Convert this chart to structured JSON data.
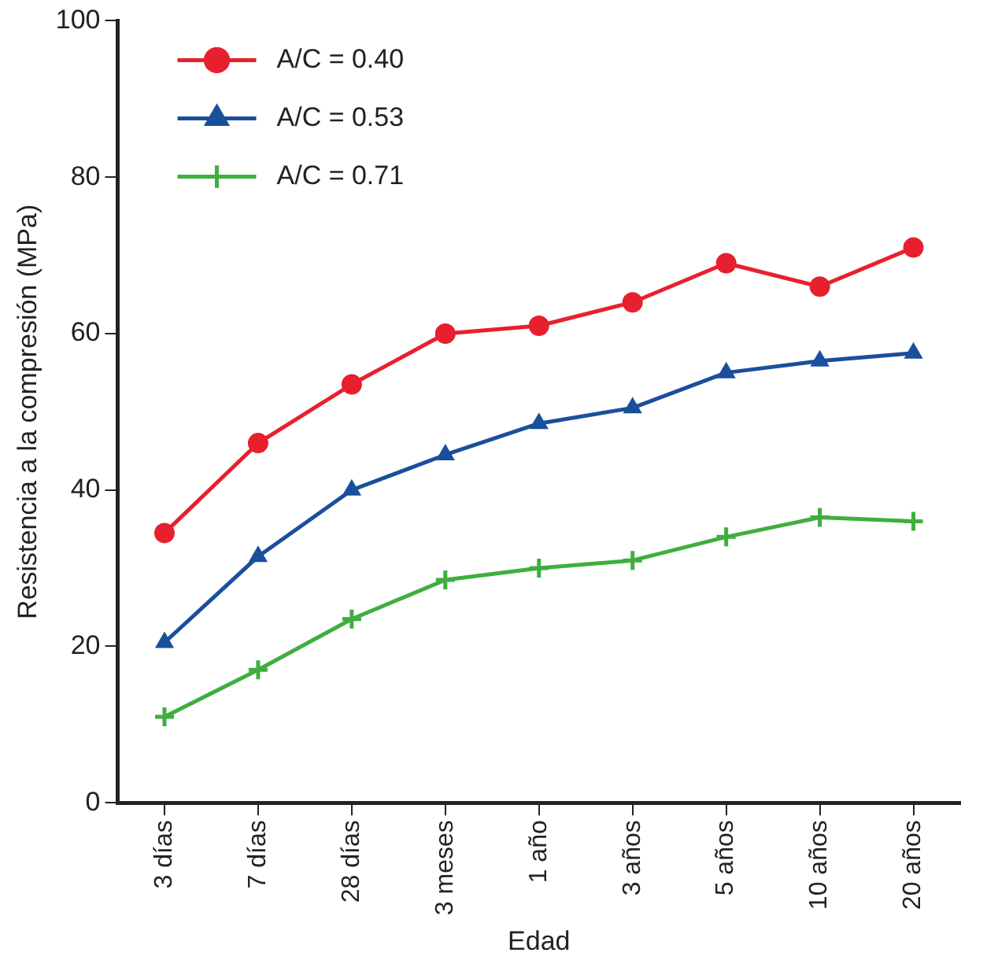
{
  "chart_data": {
    "type": "line",
    "xlabel": "Edad",
    "ylabel": "Resistencia a la compresión (MPa)",
    "categories": [
      "3 días",
      "7 días",
      "28 días",
      "3 meses",
      "1 año",
      "3 años",
      "5 años",
      "10 años",
      "20 años"
    ],
    "ylim": [
      0,
      100
    ],
    "yticks": [
      0,
      20,
      40,
      60,
      80,
      100
    ],
    "grid": false,
    "legend": "top left",
    "line_style": "solid",
    "series": [
      {
        "name": "A/C = 0.40",
        "color": "#e8202e",
        "marker": "circle",
        "values": [
          34.5,
          46,
          53.5,
          60,
          61,
          64,
          69,
          66,
          71
        ]
      },
      {
        "name": "A/C = 0.53",
        "color": "#1a4f9c",
        "marker": "triangle",
        "values": [
          20.5,
          31.5,
          40,
          44.5,
          48.5,
          50.5,
          55,
          56.5,
          57.5
        ]
      },
      {
        "name": "A/C = 0.71",
        "color": "#3fae3f",
        "marker": "cross",
        "values": [
          11,
          17,
          23.5,
          28.5,
          30,
          31,
          34,
          36.5,
          36
        ]
      }
    ]
  }
}
